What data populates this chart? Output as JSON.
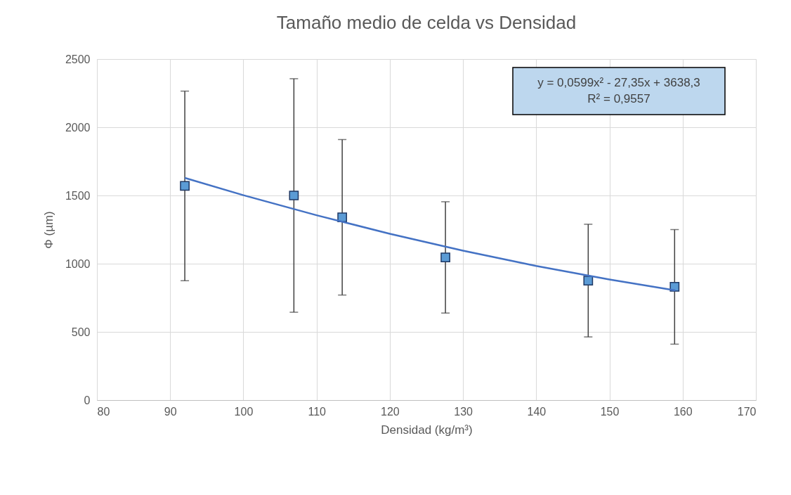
{
  "chart_data": {
    "type": "scatter",
    "title": "Tamaño medio de celda vs Densidad",
    "xlabel": "Densidad (kg/m³)",
    "ylabel": "Φ (µm)",
    "x": [
      92,
      106.9,
      113.5,
      127.6,
      147.1,
      158.9
    ],
    "series": [
      {
        "color": "#5b9bd5",
        "values": [
          1570,
          1500,
          1340,
          1046,
          876,
          830
        ],
        "errors": [
          695,
          856,
          570,
          408,
          413,
          420
        ],
        "marker": "square"
      },
      {
        "type": "line",
        "color": "#4472c4",
        "x": [
          92,
          100,
          110,
          120,
          130,
          140,
          150,
          159
        ],
        "values": [
          1629,
          1502,
          1355,
          1219,
          1095,
          983,
          884,
          804
        ],
        "line_style": "solid",
        "marker": "none"
      }
    ],
    "annotations": [
      "y = 0,0599x² - 27,35x + 3638,3",
      "R² = 0,9557"
    ],
    "xlim": [
      80,
      170
    ],
    "xticks": [
      80,
      90,
      100,
      110,
      120,
      130,
      140,
      150,
      160,
      170
    ],
    "ylim": [
      0,
      2500
    ],
    "yticks": [
      0,
      500,
      1000,
      1500,
      2000,
      2500
    ],
    "grid": true
  }
}
